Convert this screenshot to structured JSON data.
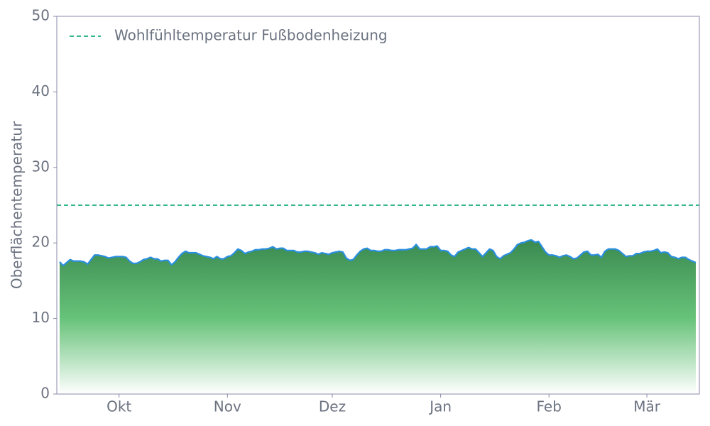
{
  "chart_data": {
    "type": "area",
    "ylabel": "Oberflächentemperatur",
    "categories": [
      null,
      null,
      null,
      null,
      null,
      null,
      null,
      null,
      null,
      null,
      null,
      null,
      null,
      null,
      null,
      null,
      null,
      "Okt",
      null,
      null,
      null,
      null,
      null,
      null,
      null,
      null,
      null,
      null,
      null,
      null,
      null,
      null,
      null,
      null,
      null,
      null,
      null,
      null,
      null,
      null,
      null,
      null,
      null,
      null,
      null,
      null,
      null,
      null,
      "Nov",
      null,
      null,
      null,
      null,
      null,
      null,
      null,
      null,
      null,
      null,
      null,
      null,
      null,
      null,
      null,
      null,
      null,
      null,
      null,
      null,
      null,
      null,
      null,
      null,
      null,
      null,
      null,
      null,
      null,
      "Dez",
      null,
      null,
      null,
      null,
      null,
      null,
      null,
      null,
      null,
      null,
      null,
      null,
      null,
      null,
      null,
      null,
      null,
      null,
      null,
      null,
      null,
      null,
      null,
      null,
      null,
      null,
      null,
      null,
      null,
      null,
      "Jan",
      null,
      null,
      null,
      null,
      null,
      null,
      null,
      null,
      null,
      null,
      null,
      null,
      null,
      null,
      null,
      null,
      null,
      null,
      null,
      null,
      null,
      null,
      null,
      null,
      null,
      null,
      null,
      null,
      null,
      null,
      "Feb",
      null,
      null,
      null,
      null,
      null,
      null,
      null,
      null,
      null,
      null,
      null,
      null,
      null,
      null,
      null,
      null,
      null,
      null,
      null,
      null,
      null,
      null,
      null,
      null,
      null,
      null,
      null,
      "Mär",
      null,
      null,
      null,
      null,
      null,
      null,
      null,
      null,
      null,
      null,
      null,
      null,
      null,
      null
    ],
    "series": [
      {
        "color": "#2b8fe0",
        "fill": "#3a8a50",
        "values": [
          17.5,
          17.0,
          17.4,
          17.8,
          17.6,
          17.6,
          17.6,
          17.5,
          17.2,
          17.8,
          18.4,
          18.4,
          18.3,
          18.2,
          18.0,
          18.1,
          18.2,
          18.2,
          18.2,
          18.1,
          17.6,
          17.3,
          17.3,
          17.5,
          17.8,
          17.9,
          18.1,
          17.9,
          17.9,
          17.6,
          17.7,
          17.7,
          17.1,
          17.5,
          18.1,
          18.6,
          18.9,
          18.7,
          18.7,
          18.7,
          18.5,
          18.3,
          18.2,
          18.1,
          17.9,
          18.2,
          17.9,
          17.9,
          18.2,
          18.3,
          18.7,
          19.2,
          19.0,
          18.6,
          18.8,
          18.9,
          19.1,
          19.1,
          19.2,
          19.2,
          19.3,
          19.5,
          19.2,
          19.3,
          19.3,
          19.0,
          19.0,
          19.0,
          18.8,
          18.8,
          18.9,
          18.9,
          18.8,
          18.7,
          18.5,
          18.7,
          18.6,
          18.5,
          18.7,
          18.8,
          18.9,
          18.8,
          18.0,
          17.7,
          17.8,
          18.4,
          18.9,
          19.2,
          19.3,
          19.0,
          19.0,
          18.9,
          18.9,
          19.1,
          19.1,
          19.0,
          19.0,
          19.1,
          19.1,
          19.1,
          19.2,
          19.3,
          19.8,
          19.2,
          19.2,
          19.2,
          19.5,
          19.5,
          19.6,
          19.0,
          19.0,
          18.9,
          18.4,
          18.2,
          18.8,
          19.0,
          19.2,
          19.4,
          19.2,
          19.2,
          18.7,
          18.2,
          18.7,
          19.2,
          19.0,
          18.2,
          17.9,
          18.3,
          18.5,
          18.7,
          19.2,
          19.8,
          20.0,
          20.1,
          20.3,
          20.4,
          20.1,
          20.2,
          19.5,
          18.8,
          18.4,
          18.4,
          18.3,
          18.1,
          18.3,
          18.4,
          18.2,
          17.9,
          18.0,
          18.4,
          18.8,
          18.9,
          18.4,
          18.4,
          18.5,
          18.1,
          18.9,
          19.2,
          19.2,
          19.2,
          19.0,
          18.6,
          18.2,
          18.3,
          18.3,
          18.6,
          18.6,
          18.8,
          18.9,
          18.9,
          19.0,
          19.2,
          18.7,
          18.8,
          18.7,
          18.2,
          18.1,
          17.9,
          18.1,
          18.1,
          17.8,
          17.6,
          17.4
        ]
      }
    ],
    "reference_lines": [
      {
        "name": "Wohlfühltemperatur Fußbodenheizung",
        "value": 25,
        "color": "#1aaf7a",
        "style": "dashed"
      }
    ],
    "ylim": [
      0,
      50
    ],
    "yticks": [
      0,
      10,
      20,
      30,
      40,
      50
    ],
    "legend": "upper left"
  }
}
